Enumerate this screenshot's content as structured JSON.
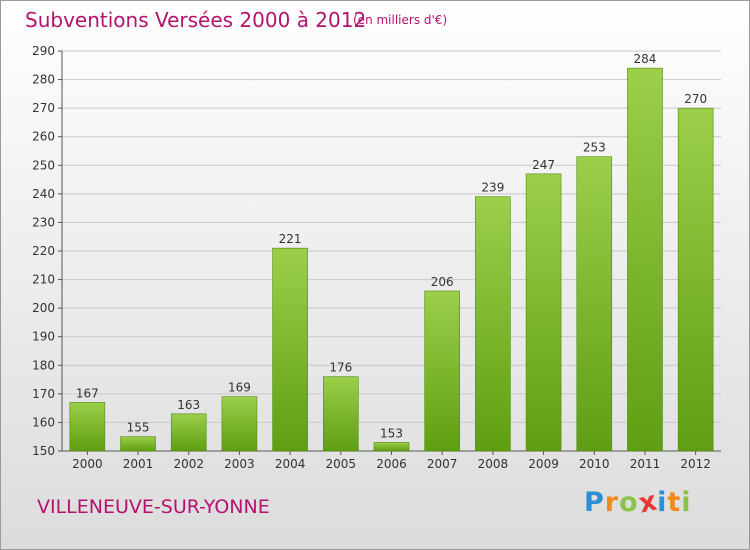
{
  "header": {
    "title": "Subventions Versées 2000 à 2012",
    "unit": "(en milliers d'€)"
  },
  "footer": {
    "city": "VILLENEUVE-SUR-YONNE",
    "logo": {
      "text": "Proxiti",
      "letters": [
        {
          "ch": "P",
          "color": "#2b8fd6"
        },
        {
          "ch": "r",
          "color": "#f28a1b"
        },
        {
          "ch": "o",
          "color": "#8bc34a"
        },
        {
          "ch": "x",
          "color": "#e53935"
        },
        {
          "ch": "i",
          "color": "#2b8fd6"
        },
        {
          "ch": "t",
          "color": "#f28a1b"
        },
        {
          "ch": "i",
          "color": "#8bc34a"
        }
      ]
    }
  },
  "chart_data": {
    "type": "bar",
    "title": "Subventions Versées 2000 à 2012",
    "subtitle": "(en milliers d'€)",
    "xlabel": "",
    "ylabel": "",
    "categories": [
      "2000",
      "2001",
      "2002",
      "2003",
      "2004",
      "2005",
      "2006",
      "2007",
      "2008",
      "2009",
      "2010",
      "2011",
      "2012"
    ],
    "values": [
      167,
      155,
      163,
      169,
      221,
      176,
      153,
      206,
      239,
      247,
      253,
      284,
      270
    ],
    "ylim": [
      150,
      290
    ],
    "yticks": [
      150,
      160,
      170,
      180,
      190,
      200,
      210,
      220,
      230,
      240,
      250,
      260,
      270,
      280,
      290
    ],
    "grid": true,
    "legend": "none",
    "bar_color_top": "#9ccf4a",
    "bar_color_bottom": "#5f9e12",
    "grid_color": "#c8c8c8",
    "label_color": "#333333"
  }
}
